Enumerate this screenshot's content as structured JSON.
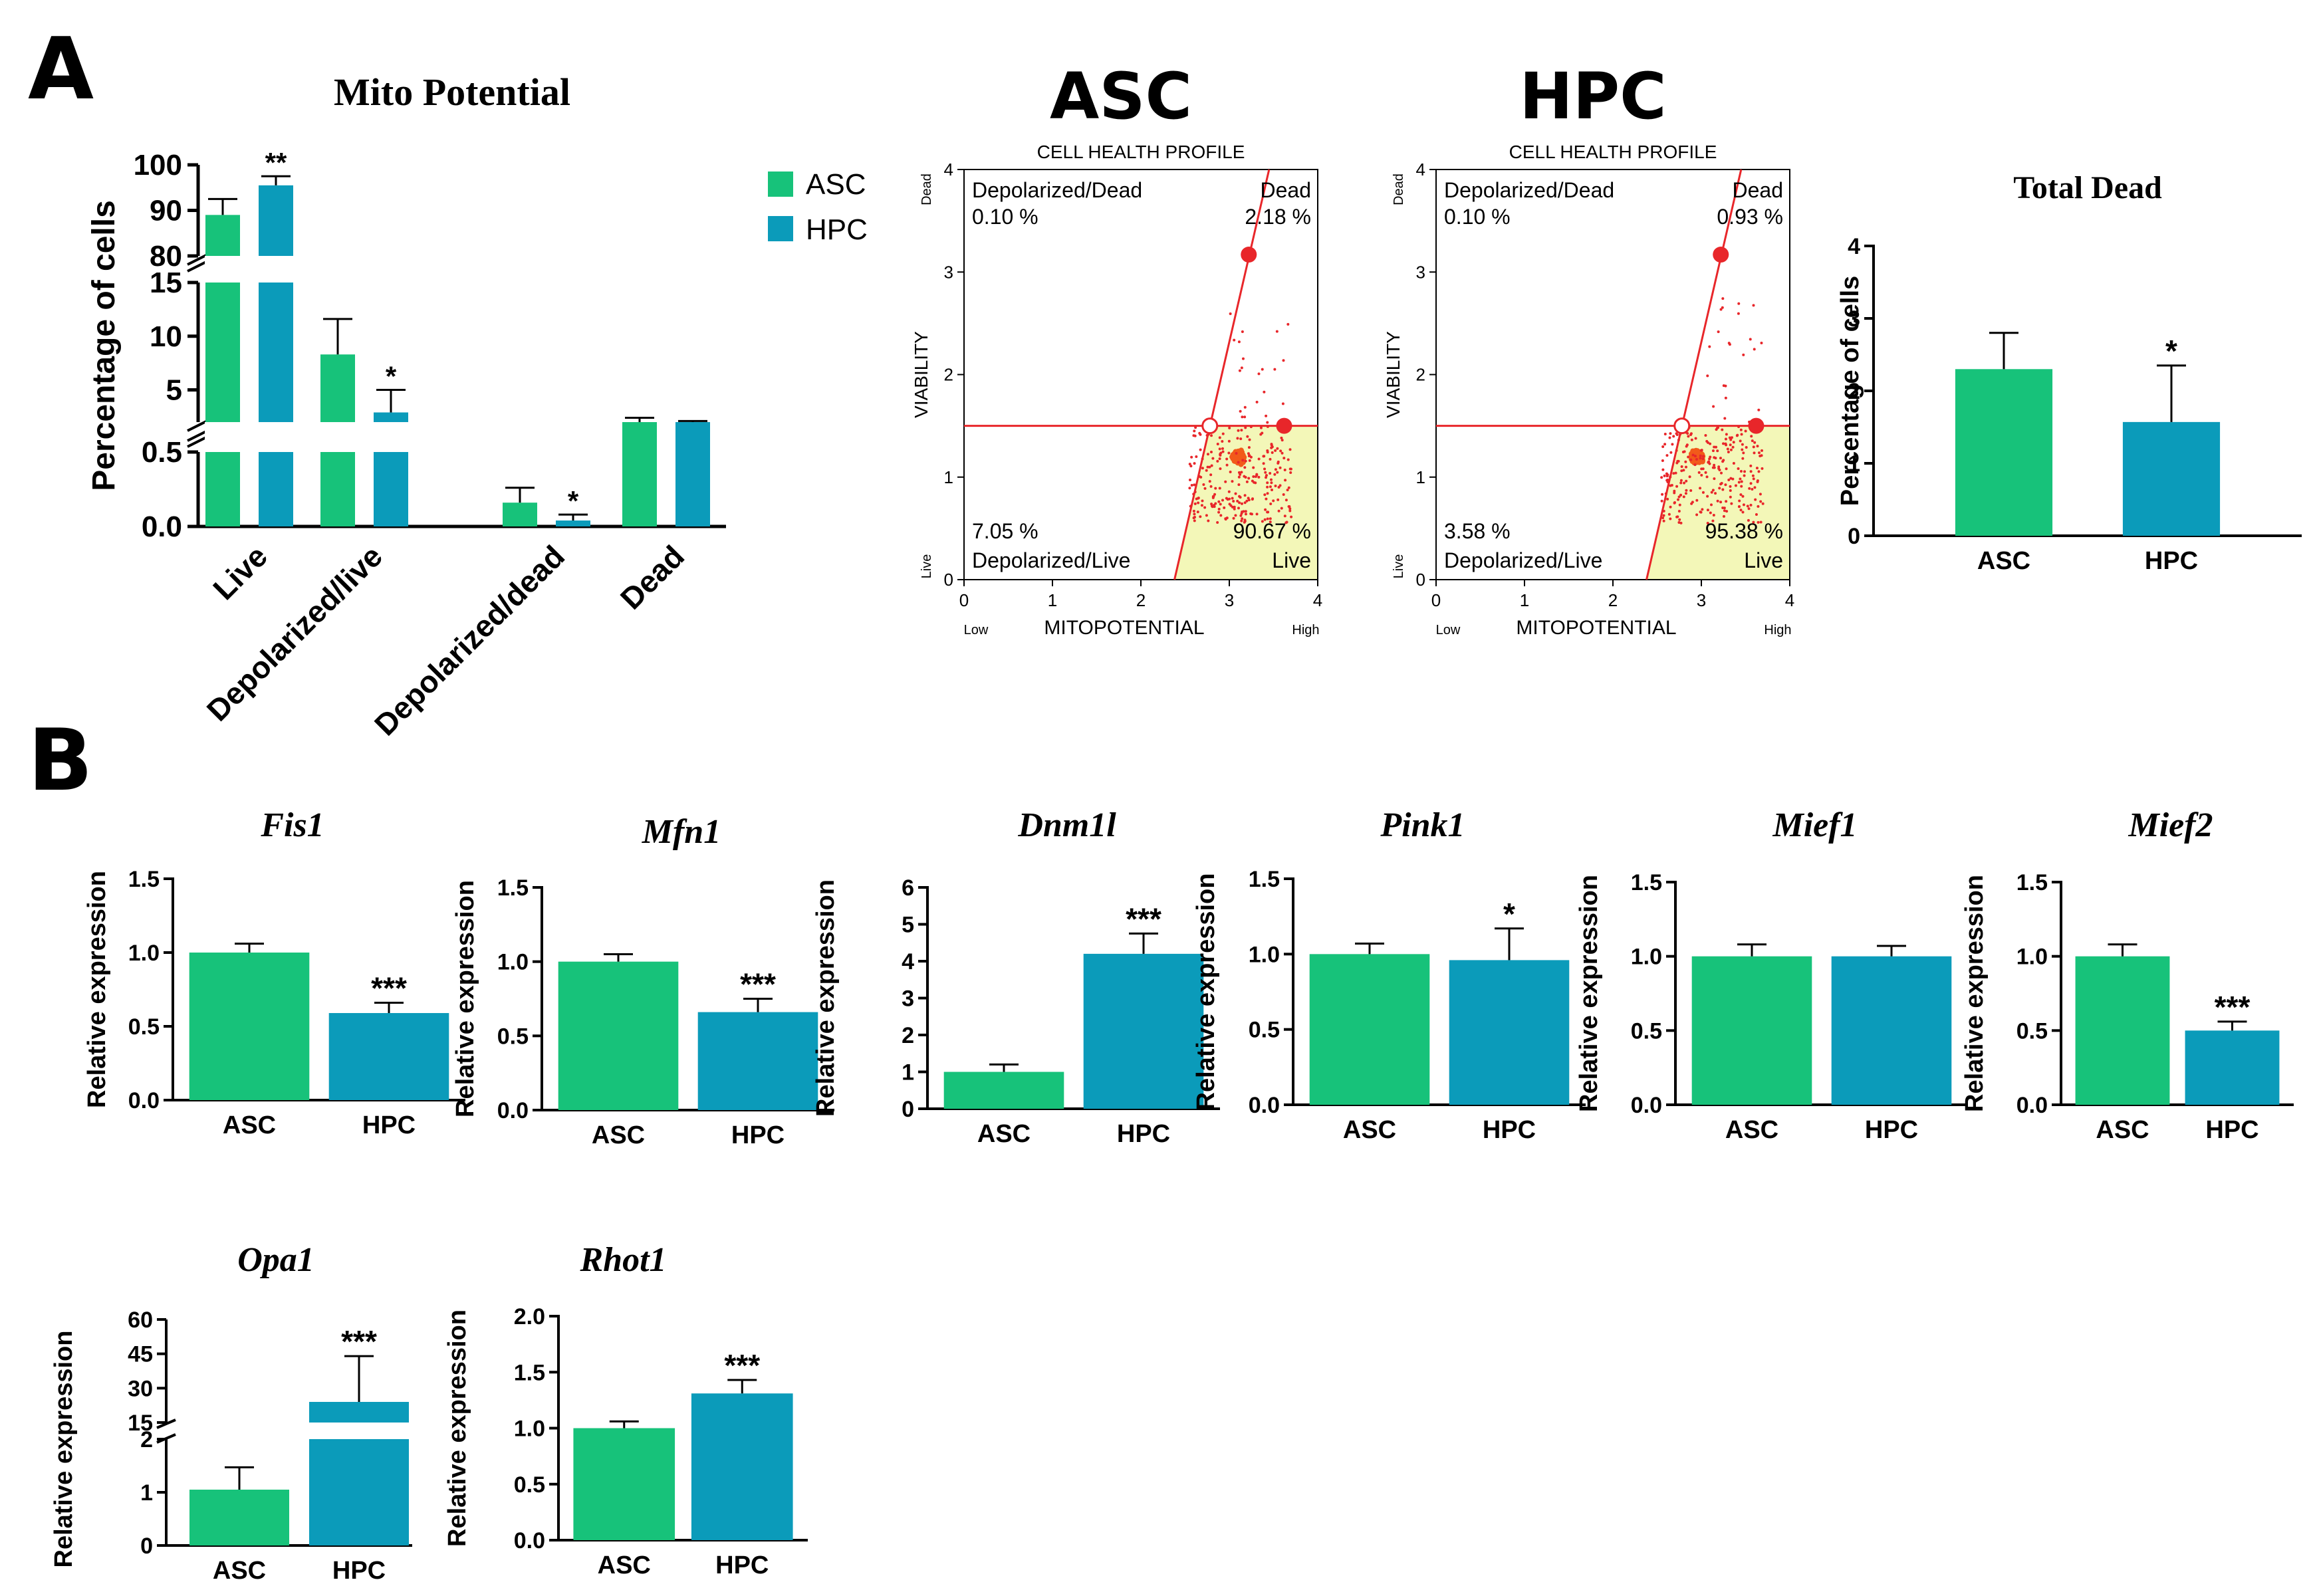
{
  "figure": {
    "panel_a_label": "A",
    "panel_b_label": "B"
  },
  "colors": {
    "asc": "#17c27a",
    "hpc": "#0b9bba",
    "axis": "#000000",
    "gate": "#e8262a",
    "quadrant_live": "#f3f7b8",
    "dots": "#f25a1a"
  },
  "chart_data": [
    {
      "id": "mito",
      "type": "bar",
      "title": "Mito Potential",
      "ylabel": "Percentage of cells",
      "categories": [
        "Live",
        "Depolarized/live",
        "Depolarized/dead",
        "Dead"
      ],
      "series": [
        {
          "name": "ASC",
          "values": [
            89,
            8.3,
            0.16,
            2.0
          ],
          "errors": [
            3.5,
            3.3,
            0.1,
            0.4
          ]
        },
        {
          "name": "HPC",
          "values": [
            95.5,
            2.9,
            0.04,
            1.6
          ],
          "errors": [
            2.0,
            2.1,
            0.04,
            0.5
          ]
        }
      ],
      "annotations": [
        "",
        "**",
        "",
        "*",
        "",
        "*",
        "",
        ""
      ],
      "broken_axis": [
        [
          0,
          0.5,
          0.0
        ],
        [
          2,
          15,
          5
        ],
        [
          80,
          100,
          10
        ]
      ],
      "yticks": [
        "0.0",
        "0.5",
        "5",
        "10",
        "15",
        "80",
        "90",
        "100"
      ],
      "legend": [
        "ASC",
        "HPC"
      ]
    },
    {
      "id": "total_dead",
      "type": "bar",
      "title": "Total Dead",
      "ylabel": "Percentage of cells",
      "categories": [
        "ASC",
        "HPC"
      ],
      "values": [
        2.3,
        1.57
      ],
      "errors": [
        0.5,
        0.78
      ],
      "annotations": [
        "",
        "*"
      ],
      "ylim": [
        0,
        4
      ],
      "yticks": [
        "0",
        "1",
        "2",
        "3",
        "4"
      ]
    },
    {
      "id": "fis1",
      "type": "bar",
      "title": "Fis1",
      "ylabel": "Relative expression",
      "categories": [
        "ASC",
        "HPC"
      ],
      "values": [
        1.0,
        0.59
      ],
      "errors": [
        0.06,
        0.07
      ],
      "annotations": [
        "",
        "***"
      ],
      "ylim": [
        0,
        1.5
      ],
      "yticks": [
        "0.0",
        "0.5",
        "1.0",
        "1.5"
      ]
    },
    {
      "id": "mfn1",
      "type": "bar",
      "title": "Mfn1",
      "ylabel": "Relative expression",
      "categories": [
        "ASC",
        "HPC"
      ],
      "values": [
        1.0,
        0.66
      ],
      "errors": [
        0.05,
        0.09
      ],
      "annotations": [
        "",
        "***"
      ],
      "ylim": [
        0,
        1.5
      ],
      "yticks": [
        "0.0",
        "0.5",
        "1.0",
        "1.5"
      ]
    },
    {
      "id": "dnm1l",
      "type": "bar",
      "title": "Dnm1l",
      "ylabel": "Relative expression",
      "categories": [
        "ASC",
        "HPC"
      ],
      "values": [
        1.0,
        4.2
      ],
      "errors": [
        0.2,
        0.55
      ],
      "annotations": [
        "",
        "***"
      ],
      "ylim": [
        0,
        6
      ],
      "yticks": [
        "0",
        "1",
        "2",
        "3",
        "4",
        "5",
        "6"
      ]
    },
    {
      "id": "pink1",
      "type": "bar",
      "title": "Pink1",
      "ylabel": "Relative expression",
      "categories": [
        "ASC",
        "HPC"
      ],
      "values": [
        1.0,
        0.96
      ],
      "errors": [
        0.07,
        0.21
      ],
      "annotations": [
        "",
        "*"
      ],
      "ylim": [
        0,
        1.5
      ],
      "yticks": [
        "0.0",
        "0.5",
        "1.0",
        "1.5"
      ]
    },
    {
      "id": "mief1",
      "type": "bar",
      "title": "Mief1",
      "ylabel": "Relative expression",
      "categories": [
        "ASC",
        "HPC"
      ],
      "values": [
        1.0,
        1.0
      ],
      "errors": [
        0.08,
        0.07
      ],
      "annotations": [
        "",
        ""
      ],
      "ylim": [
        0,
        1.5
      ],
      "yticks": [
        "0.0",
        "0.5",
        "1.0",
        "1.5"
      ]
    },
    {
      "id": "mief2",
      "type": "bar",
      "title": "Mief2",
      "ylabel": "Relative expression",
      "categories": [
        "ASC",
        "HPC"
      ],
      "values": [
        1.0,
        0.5
      ],
      "errors": [
        0.08,
        0.06
      ],
      "annotations": [
        "",
        "***"
      ],
      "ylim": [
        0,
        1.5
      ],
      "yticks": [
        "0.0",
        "0.5",
        "1.0",
        "1.5"
      ]
    },
    {
      "id": "opa1",
      "type": "bar",
      "title": "Opa1",
      "ylabel": "Relative expression",
      "categories": [
        "ASC",
        "HPC"
      ],
      "values": [
        1.05,
        24
      ],
      "errors": [
        0.42,
        20
      ],
      "annotations": [
        "",
        "***"
      ],
      "broken_axis": [
        [
          0,
          2,
          1
        ],
        [
          15,
          60,
          15
        ]
      ],
      "yticks": [
        "0",
        "1",
        "2",
        "15",
        "30",
        "45",
        "60"
      ]
    },
    {
      "id": "rhot1",
      "type": "bar",
      "title": "Rhot1",
      "ylabel": "Relative expression",
      "categories": [
        "ASC",
        "HPC"
      ],
      "values": [
        1.0,
        1.31
      ],
      "errors": [
        0.06,
        0.12
      ],
      "annotations": [
        "",
        "***"
      ],
      "ylim": [
        0,
        2.0
      ],
      "yticks": [
        "0.0",
        "0.5",
        "1.0",
        "1.5",
        "2.0"
      ]
    },
    {
      "id": "flow_asc",
      "type": "scatter",
      "title": "ASC",
      "subtitle": "CELL HEALTH PROFILE",
      "xlabel": "MITOPOTENTIAL",
      "ylabel": "VIABILITY",
      "xlim": [
        0,
        4
      ],
      "ylim": [
        0,
        4
      ],
      "xticks": [
        "0",
        "1",
        "2",
        "3",
        "4"
      ],
      "yticks": [
        "0",
        "1",
        "2",
        "3",
        "4"
      ],
      "x_low": "Low",
      "x_high": "High",
      "y_low": "Live",
      "y_high": "Dead",
      "cluster_center": [
        3.1,
        1.2
      ],
      "gate_point": [
        2.78,
        1.5
      ],
      "quadrants": {
        "top_left": {
          "label": "Depolarized/Dead",
          "value": "0.10 %"
        },
        "top_right": {
          "label": "Dead",
          "value": "2.18 %"
        },
        "bottom_left": {
          "label": "Depolarized/Live",
          "value": "7.05 %"
        },
        "bottom_right": {
          "label": "Live",
          "value": "90.67 %"
        }
      }
    },
    {
      "id": "flow_hpc",
      "type": "scatter",
      "title": "HPC",
      "subtitle": "CELL HEALTH PROFILE",
      "xlabel": "MITOPOTENTIAL",
      "ylabel": "VIABILITY",
      "xlim": [
        0,
        4
      ],
      "ylim": [
        0,
        4
      ],
      "xticks": [
        "0",
        "1",
        "2",
        "3",
        "4"
      ],
      "yticks": [
        "0",
        "1",
        "2",
        "3",
        "4"
      ],
      "x_low": "Low",
      "x_high": "High",
      "y_low": "Live",
      "y_high": "Dead",
      "cluster_center": [
        2.95,
        1.2
      ],
      "gate_point": [
        2.78,
        1.5
      ],
      "quadrants": {
        "top_left": {
          "label": "Depolarized/Dead",
          "value": "0.10 %"
        },
        "top_right": {
          "label": "Dead",
          "value": "0.93 %"
        },
        "bottom_left": {
          "label": "Depolarized/Live",
          "value": "3.58 %"
        },
        "bottom_right": {
          "label": "Live",
          "value": "95.38 %"
        }
      }
    }
  ]
}
